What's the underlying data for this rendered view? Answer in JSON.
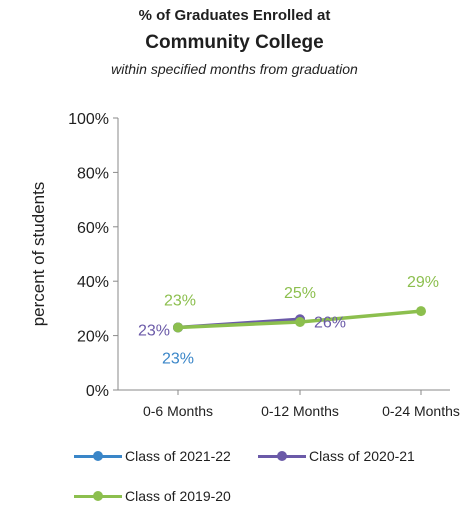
{
  "chart_data": {
    "type": "line",
    "title": "% of Graduates Enrolled at",
    "subtitle_main": "Community College",
    "subtitle": "within specified months from graduation",
    "xlabel": "",
    "ylabel": "percent of students",
    "categories": [
      "0-6 Months",
      "0-12 Months",
      "0-24 Months"
    ],
    "y_ticks": [
      "0%",
      "20%",
      "40%",
      "60%",
      "80%",
      "100%"
    ],
    "ylim": [
      0,
      100
    ],
    "grid": false,
    "legend_position": "bottom",
    "series": [
      {
        "name": "Class of 2021-22",
        "color": "#3a86c8",
        "values": [
          23,
          null,
          null
        ],
        "labels": [
          "23%",
          "",
          ""
        ]
      },
      {
        "name": "Class of 2020-21",
        "color": "#6b5aa8",
        "values": [
          23,
          26,
          null
        ],
        "labels": [
          "23%",
          "26%",
          ""
        ]
      },
      {
        "name": "Class of 2019-20",
        "color": "#8cbf4e",
        "values": [
          23,
          25,
          29
        ],
        "labels": [
          "23%",
          "25%",
          "29%"
        ]
      }
    ]
  }
}
